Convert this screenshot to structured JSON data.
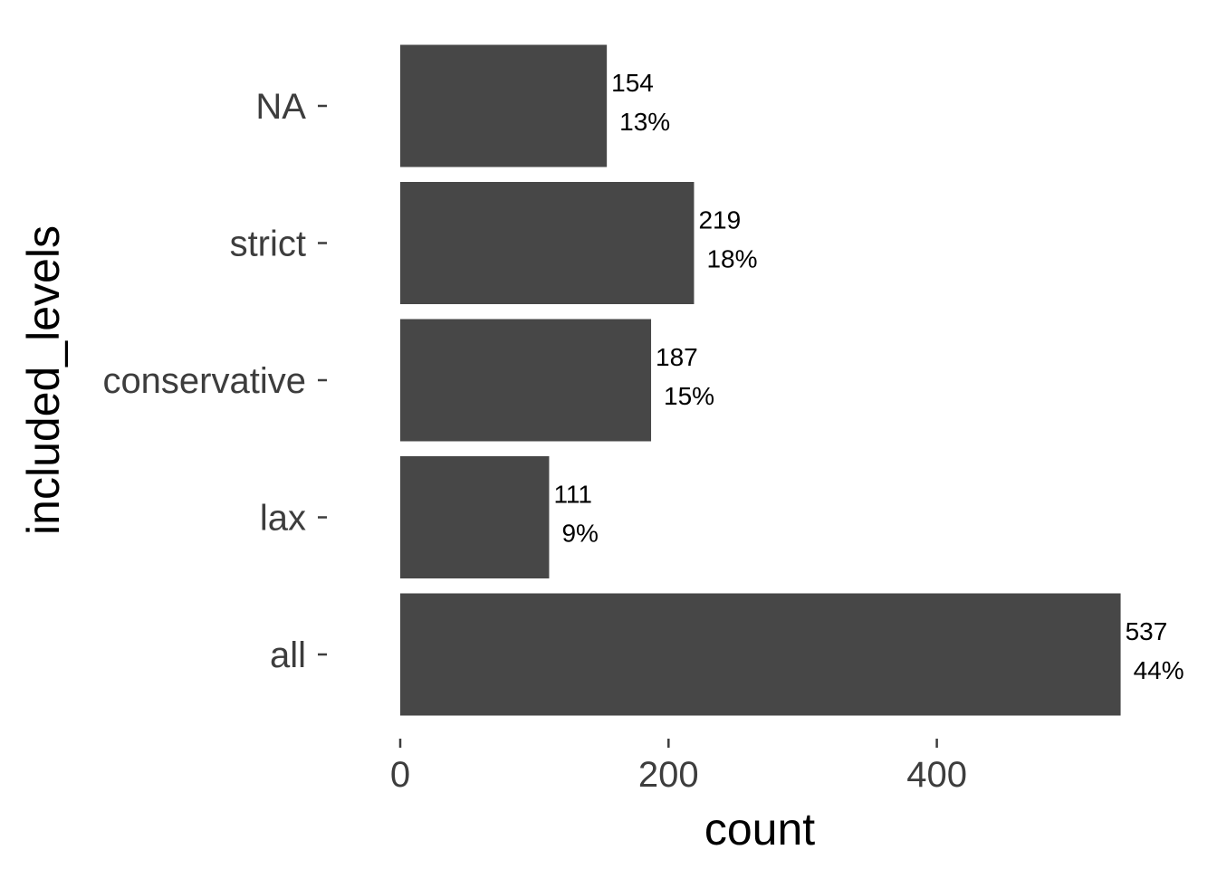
{
  "chart_data": {
    "type": "bar",
    "orientation": "horizontal",
    "xlabel": "count",
    "ylabel": "included_levels",
    "categories": [
      "all",
      "lax",
      "conservative",
      "strict",
      "NA"
    ],
    "values": [
      537,
      111,
      187,
      219,
      154
    ],
    "percent_labels": [
      "44%",
      "9%",
      "15%",
      "18%",
      "13%"
    ],
    "count_labels": [
      "537",
      "111",
      "187",
      "219",
      "154"
    ],
    "xlim": [
      0,
      537
    ],
    "x_ticks": [
      0,
      200,
      400
    ],
    "x_tick_labels": [
      "0",
      "200",
      "400"
    ],
    "grid": false,
    "legend": "none",
    "colors": {
      "bar": "#474747",
      "tick_label": "#3d3d3d",
      "title": "#000000"
    }
  }
}
